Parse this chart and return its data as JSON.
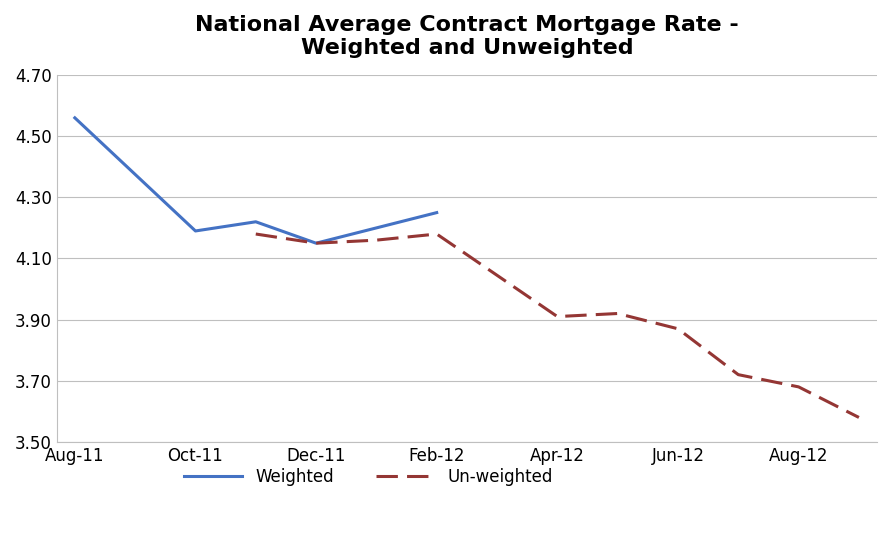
{
  "title": "National Average Contract Mortgage Rate -\nWeighted and Unweighted",
  "weighted_x": [
    0,
    2,
    3,
    4,
    5,
    6
  ],
  "weighted_y": [
    4.56,
    4.19,
    4.22,
    4.15,
    4.2,
    4.25
  ],
  "unweighted_x": [
    3,
    4,
    5,
    6,
    8,
    9,
    10,
    11,
    12,
    13
  ],
  "unweighted_y": [
    4.18,
    4.15,
    4.16,
    4.18,
    3.91,
    3.92,
    3.87,
    3.72,
    3.68,
    3.58
  ],
  "xlabels": [
    "Aug-11",
    "Oct-11",
    "Dec-11",
    "Feb-12",
    "Apr-12",
    "Jun-12",
    "Aug-12"
  ],
  "xtick_positions": [
    0,
    2,
    4,
    6,
    8,
    10,
    12
  ],
  "ylim": [
    3.5,
    4.7
  ],
  "yticks": [
    3.5,
    3.7,
    3.9,
    4.1,
    4.3,
    4.5,
    4.7
  ],
  "weighted_color": "#4472C4",
  "unweighted_color": "#943634",
  "legend_weighted": "Weighted",
  "legend_unweighted": "Un-weighted",
  "bg_color": "#FFFFFF",
  "grid_color": "#BFBFBF",
  "title_fontsize": 16,
  "tick_fontsize": 12,
  "legend_fontsize": 12
}
